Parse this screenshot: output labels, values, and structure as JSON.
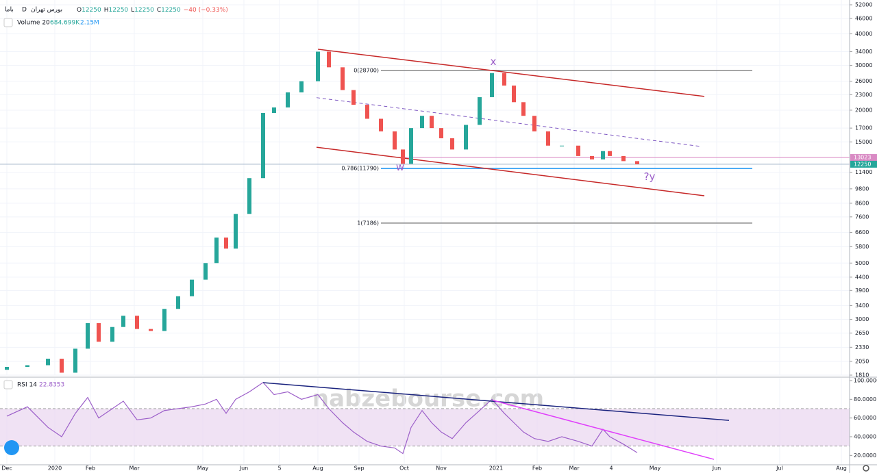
{
  "chart_data": [
    {
      "type": "candlestick",
      "symbol": "باما",
      "interval": "D",
      "exchange": "بورس تهران",
      "ohlc_legend": [
        {
          "label": "O",
          "value": 12250
        },
        {
          "label": "H",
          "value": 12250
        },
        {
          "label": "L",
          "value": 12250
        },
        {
          "label": "C",
          "value": 12250
        }
      ],
      "change": "−40 (−0.33%)",
      "volume_legend": {
        "name": "Volume 20",
        "values": [
          "684.699K",
          "2.15M"
        ]
      },
      "x": [
        2.5,
        10,
        17.5,
        22.5,
        27.5,
        32,
        36,
        41,
        45,
        50,
        55,
        60,
        65,
        70,
        75,
        79,
        82.5,
        86,
        91,
        96,
        100,
        105,
        110,
        116,
        120,
        125,
        129,
        134,
        139,
        144,
        147,
        150,
        154,
        157.5,
        161,
        165,
        170,
        175,
        179.5,
        184,
        187.5,
        191,
        195,
        200,
        205,
        211,
        216,
        220,
        222.5,
        227.5,
        232.5
      ],
      "open": [
        1900,
        1950,
        1980,
        2100,
        1850,
        2300,
        2900,
        2450,
        2800,
        3100,
        2750,
        2700,
        3300,
        3700,
        4300,
        5000,
        6300,
        5700,
        7800,
        10800,
        19500,
        20500,
        23500,
        26000,
        34000,
        29500,
        24000,
        21000,
        18500,
        16500,
        14000,
        12300,
        17000,
        19000,
        17000,
        15500,
        14000,
        17500,
        22500,
        28000,
        25000,
        21500,
        19000,
        16500,
        14500,
        14500,
        13200,
        12800,
        13800,
        13200,
        12600
      ],
      "close": [
        1950,
        1980,
        2100,
        1850,
        2300,
        2900,
        2450,
        2800,
        3100,
        2750,
        2700,
        3300,
        3700,
        4300,
        5000,
        6300,
        5700,
        7800,
        10800,
        19500,
        20500,
        23500,
        26000,
        34000,
        29500,
        24000,
        21000,
        18500,
        16500,
        14000,
        12300,
        17000,
        19000,
        17000,
        15500,
        14000,
        17500,
        22500,
        28000,
        25000,
        21500,
        19000,
        16500,
        14500,
        14500,
        13200,
        12800,
        13800,
        13200,
        12600,
        12250
      ],
      "up_color": "#26a69a",
      "down_color": "#ef5350",
      "log_scale": true,
      "grid": true,
      "ylim": [
        1810,
        52000
      ],
      "yticks": [
        52000,
        46000,
        40000,
        34000,
        30000,
        26000,
        23000,
        20000,
        17000,
        15000,
        11400,
        9800,
        8600,
        7600,
        6600,
        5800,
        5000,
        4400,
        3900,
        3400,
        3000,
        2650,
        2330,
        2050,
        1810
      ],
      "xlim": [
        0,
        310
      ],
      "xticks": [
        {
          "value": 2.5,
          "label": "Dec"
        },
        {
          "value": 20,
          "label": "2020"
        },
        {
          "value": 33,
          "label": "Feb"
        },
        {
          "value": 49,
          "label": "Mar"
        },
        {
          "value": 74,
          "label": "May"
        },
        {
          "value": 89,
          "label": "Jun"
        },
        {
          "value": 102,
          "label": "5"
        },
        {
          "value": 116,
          "label": "Aug"
        },
        {
          "value": 131,
          "label": "Sep"
        },
        {
          "value": 147.5,
          "label": "Oct"
        },
        {
          "value": 161,
          "label": "Nov"
        },
        {
          "value": 181,
          "label": "2021"
        },
        {
          "value": 196,
          "label": "Feb"
        },
        {
          "value": 209.5,
          "label": "Mar"
        },
        {
          "value": 223,
          "label": "4"
        },
        {
          "value": 239,
          "label": "May"
        },
        {
          "value": 261.5,
          "label": "Jun"
        },
        {
          "value": 284.5,
          "label": "Jul"
        },
        {
          "value": 307,
          "label": "Aug"
        }
      ],
      "price_markers": [
        {
          "value": 13023,
          "color": "#d98ac4"
        },
        {
          "value": 12250,
          "color": "#26a69a"
        }
      ],
      "trend_lines": [
        {
          "x": [
            116,
            257
          ],
          "y": [
            34750,
            22650
          ],
          "color": "#c62828",
          "dash": false
        },
        {
          "x": [
            115.5,
            257
          ],
          "y": [
            14290,
            9200
          ],
          "color": "#c62828",
          "dash": false
        },
        {
          "x": [
            115.5,
            255.5
          ],
          "y": [
            22400,
            14400
          ],
          "color": "#7e57c2",
          "dash": true
        }
      ],
      "fib_levels": [
        {
          "label": "0(28700)",
          "value": 28700,
          "x": [
            139,
            274.5
          ],
          "color": "#888888"
        },
        {
          "label": "0.786(11790)",
          "value": 11790,
          "x": [
            139,
            274.5
          ],
          "color": "#2196f3"
        },
        {
          "label": "1(7186)",
          "value": 7186,
          "x": [
            139,
            274.5
          ],
          "color": "#888888"
        }
      ],
      "annotations": [
        {
          "text": "x",
          "x": 180,
          "y": 31000
        },
        {
          "text": "w",
          "x": 146,
          "y": 11900
        },
        {
          "text": "?y",
          "x": 237,
          "y": 10900
        }
      ],
      "watermark": "nabzebourse.com"
    },
    {
      "type": "line",
      "name": "RSI 14",
      "last_value": 22.8353,
      "color": "#9c5fc9",
      "x": [
        2.5,
        10,
        17.5,
        22.5,
        27.5,
        32,
        36,
        41,
        45,
        50,
        55,
        60,
        65,
        70,
        75,
        79,
        82.5,
        86,
        91,
        96,
        100,
        105,
        110,
        116,
        120,
        125,
        129,
        134,
        139,
        144,
        147,
        150,
        154,
        157.5,
        161,
        165,
        170,
        175,
        179.5,
        184,
        187.5,
        191,
        195,
        200,
        205,
        211,
        216,
        220,
        222.5,
        227.5,
        232.5
      ],
      "values": [
        62,
        72,
        50,
        40,
        65,
        82,
        60,
        70,
        78,
        58,
        60,
        68,
        70,
        72,
        75,
        80,
        65,
        80,
        88,
        98,
        85,
        88,
        80,
        85,
        70,
        55,
        45,
        35,
        30,
        28,
        22,
        50,
        68,
        55,
        45,
        38,
        55,
        68,
        80,
        65,
        55,
        45,
        38,
        35,
        40,
        35,
        30,
        48,
        40,
        32,
        23
      ],
      "ylim": [
        10,
        100
      ],
      "yticks": [
        {
          "value": 100,
          "label": "100.0000"
        },
        {
          "value": 80,
          "label": "80.0000"
        },
        {
          "value": 60,
          "label": "60.0000"
        },
        {
          "value": 40,
          "label": "40.0000"
        },
        {
          "value": 20,
          "label": "20.0000"
        }
      ],
      "bands": [
        30,
        70
      ],
      "band_color": "#ead5f0",
      "trend_lines": [
        {
          "x": [
            96,
            266
          ],
          "y": [
            97.8,
            57.5
          ],
          "color": "#1a237e"
        },
        {
          "x": [
            180,
            260.5
          ],
          "y": [
            78.8,
            15.8
          ],
          "color": "#e040fb"
        }
      ]
    }
  ]
}
